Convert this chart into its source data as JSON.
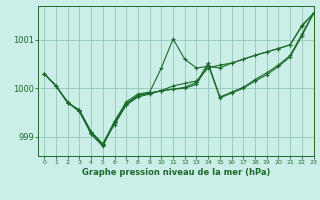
{
  "background_color": "#cceee8",
  "grid_color": "#99ccbb",
  "line_color": "#1a6b2a",
  "marker_color": "#1a6b2a",
  "xlabel": "Graphe pression niveau de la mer (hPa)",
  "ylim": [
    998.6,
    1001.7
  ],
  "xlim": [
    -0.5,
    23
  ],
  "yticks": [
    999,
    1000,
    1001
  ],
  "xticks": [
    0,
    1,
    2,
    3,
    4,
    5,
    6,
    7,
    8,
    9,
    10,
    11,
    12,
    13,
    14,
    15,
    16,
    17,
    18,
    19,
    20,
    21,
    22,
    23
  ],
  "series": [
    [
      1000.3,
      1000.05,
      999.7,
      999.55,
      999.1,
      998.85,
      999.25,
      999.65,
      999.82,
      999.88,
      999.95,
      1000.05,
      1000.1,
      1000.15,
      1000.42,
      1000.48,
      1000.52,
      1000.6,
      1000.68,
      1000.75,
      1000.82,
      1000.9,
      1001.3,
      1001.55
    ],
    [
      1000.3,
      1000.05,
      999.7,
      999.55,
      999.1,
      998.85,
      999.32,
      999.72,
      999.88,
      999.92,
      1000.42,
      1001.02,
      1000.6,
      1000.42,
      1000.45,
      1000.42,
      1000.52,
      1000.6,
      1000.68,
      1000.75,
      1000.82,
      1000.9,
      1001.28,
      1001.55
    ],
    [
      1000.3,
      1000.05,
      999.72,
      999.52,
      999.08,
      998.82,
      999.28,
      999.68,
      999.85,
      999.9,
      999.95,
      999.98,
      1000.02,
      1000.12,
      1000.52,
      999.82,
      999.92,
      1000.02,
      1000.18,
      1000.32,
      1000.48,
      1000.68,
      1001.12,
      1001.55
    ],
    [
      1000.3,
      1000.05,
      999.7,
      999.52,
      999.05,
      998.8,
      999.3,
      999.68,
      999.85,
      999.9,
      999.95,
      999.98,
      1000.0,
      1000.08,
      1000.48,
      999.8,
      999.9,
      1000.0,
      1000.15,
      1000.28,
      1000.45,
      1000.65,
      1001.08,
      1001.55
    ]
  ]
}
